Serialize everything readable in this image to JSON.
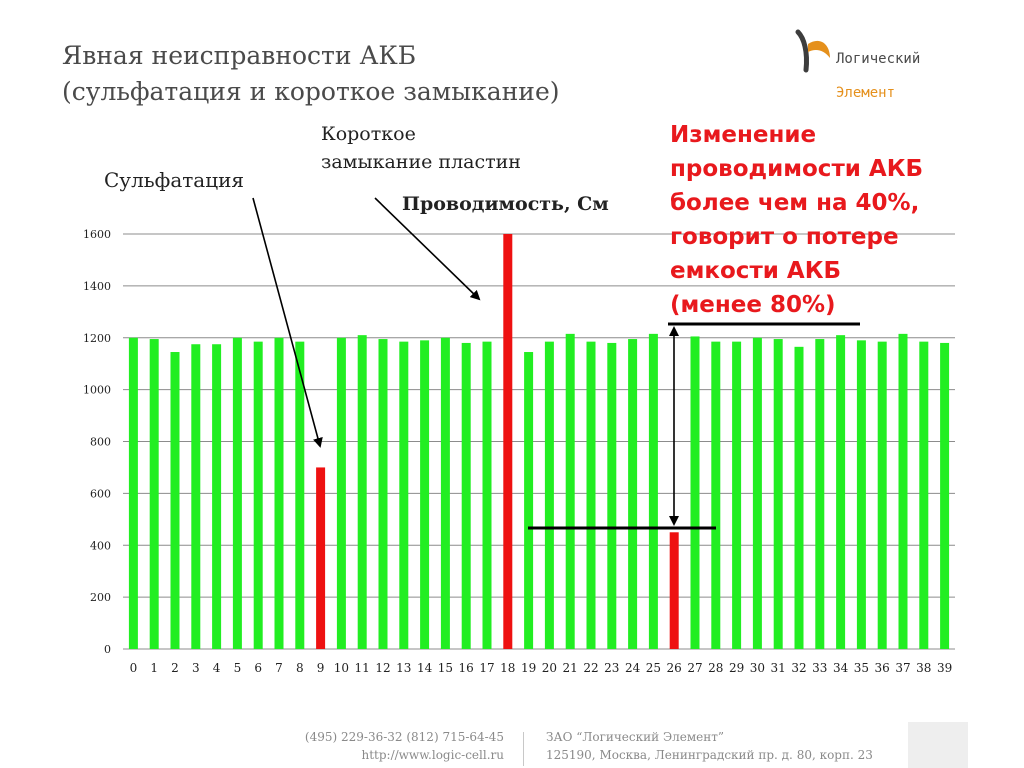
{
  "header": {
    "title": "Явная неисправности АКБ\n(сульфатация и короткое замыкание)",
    "logo_line1": "Логический",
    "logo_line2": "Элемент"
  },
  "annotations": {
    "short_circuit": "Короткое\nзамыкание пластин",
    "sulfation": "Сульфатация",
    "metric": "Проводимость, См",
    "capacity_note": "Изменение\nпроводимости АКБ\nболее чем на 40%,\nговорит о потере\nемкости АКБ\n(менее 80%)"
  },
  "footer": {
    "phones": "(495) 229-36-32 (812) 715-64-45",
    "site": "http://www.logic-cell.ru",
    "company": "ЗАО “Логический Элемент”",
    "address": "125190, Москва, Ленинградский пр. д. 80, корп. 23"
  },
  "colors": {
    "bar_normal": "#22ee22",
    "bar_fault": "#ee1111",
    "accent_text": "#e8191d",
    "logo_orange": "#e5901c"
  },
  "chart_data": {
    "type": "bar",
    "categories": [
      "0",
      "1",
      "2",
      "3",
      "4",
      "5",
      "6",
      "7",
      "8",
      "9",
      "10",
      "11",
      "12",
      "13",
      "14",
      "15",
      "16",
      "17",
      "18",
      "19",
      "20",
      "21",
      "22",
      "23",
      "24",
      "25",
      "26",
      "27",
      "28",
      "29",
      "30",
      "31",
      "32",
      "33",
      "34",
      "35",
      "36",
      "37",
      "38",
      "39"
    ],
    "values": [
      1200,
      1195,
      1145,
      1175,
      1175,
      1200,
      1185,
      1200,
      1185,
      700,
      1200,
      1210,
      1195,
      1185,
      1190,
      1200,
      1180,
      1185,
      1600,
      1145,
      1185,
      1215,
      1185,
      1180,
      1195,
      1215,
      450,
      1205,
      1185,
      1185,
      1200,
      1195,
      1165,
      1195,
      1210,
      1190,
      1185,
      1215,
      1185,
      1180
    ],
    "fault_indices": [
      9,
      18,
      26
    ],
    "ylim": [
      0,
      1600
    ],
    "yticks": [
      0,
      200,
      400,
      600,
      800,
      1000,
      1200,
      1400,
      1600
    ],
    "grid": true,
    "legend": "none"
  }
}
